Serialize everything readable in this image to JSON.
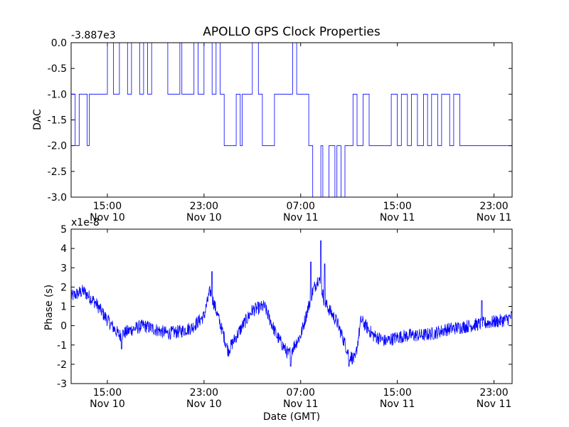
{
  "figure": {
    "title": "APOLLO GPS Clock Properties",
    "colors": {
      "line": "#0000ff",
      "axes": "#000000",
      "background": "#ffffff"
    }
  },
  "chart_data": [
    {
      "type": "line",
      "ylabel": "DAC",
      "xlabel": "",
      "offset_label": "-3.887e3",
      "ylim": [
        -3.0,
        0.0
      ],
      "yticks": [
        0.0,
        -0.5,
        -1.0,
        -1.5,
        -2.0,
        -2.5,
        -3.0
      ],
      "ytick_labels": [
        "0.0",
        "-0.5",
        "-1.0",
        "-1.5",
        "-2.0",
        "-2.5",
        "-3.0"
      ],
      "xlim": [
        "2012-11-10 12:00",
        "2012-11-12 00:30"
      ],
      "xtick_labels": [
        {
          "time": "15:00",
          "date": "Nov 10"
        },
        {
          "time": "23:00",
          "date": "Nov 10"
        },
        {
          "time": "07:00",
          "date": "Nov 11"
        },
        {
          "time": "15:00",
          "date": "Nov 11"
        },
        {
          "time": "23:00",
          "date": "Nov 11"
        }
      ],
      "xticks": [
        "2012-11-10 15:00",
        "2012-11-10 23:00",
        "2012-11-11 07:00",
        "2012-11-11 15:00",
        "2012-11-11 23:00"
      ],
      "series": [
        {
          "color": "#0000ff",
          "segments": [
            {
              "start": "2012-11-10 12:00",
              "end": "2012-11-10 12:20",
              "value": -1
            },
            {
              "start": "2012-11-10 12:20",
              "end": "2012-11-10 12:40",
              "value": -2
            },
            {
              "start": "2012-11-10 12:40",
              "end": "2012-11-10 13:20",
              "value": -1
            },
            {
              "start": "2012-11-10 13:20",
              "end": "2012-11-10 13:30",
              "value": -2
            },
            {
              "start": "2012-11-10 13:30",
              "end": "2012-11-10 15:00",
              "value": -1
            },
            {
              "start": "2012-11-10 15:00",
              "end": "2012-11-10 15:30",
              "value": 0
            },
            {
              "start": "2012-11-10 15:30",
              "end": "2012-11-10 16:00",
              "value": -1
            },
            {
              "start": "2012-11-10 16:00",
              "end": "2012-11-10 16:40",
              "value": 0
            },
            {
              "start": "2012-11-10 16:40",
              "end": "2012-11-10 17:00",
              "value": -1
            },
            {
              "start": "2012-11-10 17:00",
              "end": "2012-11-10 17:40",
              "value": 0
            },
            {
              "start": "2012-11-10 17:40",
              "end": "2012-11-10 18:00",
              "value": -1
            },
            {
              "start": "2012-11-10 18:00",
              "end": "2012-11-10 18:20",
              "value": 0
            },
            {
              "start": "2012-11-10 18:20",
              "end": "2012-11-10 18:40",
              "value": -1
            },
            {
              "start": "2012-11-10 18:40",
              "end": "2012-11-10 20:00",
              "value": 0
            },
            {
              "start": "2012-11-10 20:00",
              "end": "2012-11-10 21:00",
              "value": -1
            },
            {
              "start": "2012-11-10 21:00",
              "end": "2012-11-10 21:10",
              "value": 0
            },
            {
              "start": "2012-11-10 21:10",
              "end": "2012-11-10 22:10",
              "value": -1
            },
            {
              "start": "2012-11-10 22:10",
              "end": "2012-11-10 22:30",
              "value": 0
            },
            {
              "start": "2012-11-10 22:30",
              "end": "2012-11-10 23:00",
              "value": -1
            },
            {
              "start": "2012-11-10 23:00",
              "end": "2012-11-10 23:40",
              "value": 0
            },
            {
              "start": "2012-11-10 23:40",
              "end": "2012-11-11 00:00",
              "value": -1
            },
            {
              "start": "2012-11-11 00:00",
              "end": "2012-11-11 00:20",
              "value": 0
            },
            {
              "start": "2012-11-11 00:20",
              "end": "2012-11-11 00:40",
              "value": -1
            },
            {
              "start": "2012-11-11 00:40",
              "end": "2012-11-11 01:40",
              "value": -2
            },
            {
              "start": "2012-11-11 01:40",
              "end": "2012-11-11 02:00",
              "value": -1
            },
            {
              "start": "2012-11-11 02:00",
              "end": "2012-11-11 02:10",
              "value": -2
            },
            {
              "start": "2012-11-11 02:10",
              "end": "2012-11-11 03:00",
              "value": -1
            },
            {
              "start": "2012-11-11 03:00",
              "end": "2012-11-11 03:30",
              "value": 0
            },
            {
              "start": "2012-11-11 03:30",
              "end": "2012-11-11 03:50",
              "value": -1
            },
            {
              "start": "2012-11-11 03:50",
              "end": "2012-11-11 04:50",
              "value": -2
            },
            {
              "start": "2012-11-11 04:50",
              "end": "2012-11-11 06:20",
              "value": -1
            },
            {
              "start": "2012-11-11 06:20",
              "end": "2012-11-11 06:40",
              "value": 0
            },
            {
              "start": "2012-11-11 06:40",
              "end": "2012-11-11 07:40",
              "value": -1
            },
            {
              "start": "2012-11-11 07:40",
              "end": "2012-11-11 08:00",
              "value": -2
            },
            {
              "start": "2012-11-11 08:00",
              "end": "2012-11-11 08:40",
              "value": -3
            },
            {
              "start": "2012-11-11 08:40",
              "end": "2012-11-11 08:50",
              "value": -2
            },
            {
              "start": "2012-11-11 08:50",
              "end": "2012-11-11 09:20",
              "value": -3
            },
            {
              "start": "2012-11-11 09:20",
              "end": "2012-11-11 09:50",
              "value": -2
            },
            {
              "start": "2012-11-11 09:50",
              "end": "2012-11-11 10:00",
              "value": -3
            },
            {
              "start": "2012-11-11 10:00",
              "end": "2012-11-11 10:20",
              "value": -2
            },
            {
              "start": "2012-11-11 10:20",
              "end": "2012-11-11 10:40",
              "value": -3
            },
            {
              "start": "2012-11-11 10:40",
              "end": "2012-11-11 11:20",
              "value": -2
            },
            {
              "start": "2012-11-11 11:20",
              "end": "2012-11-11 11:40",
              "value": -1
            },
            {
              "start": "2012-11-11 11:40",
              "end": "2012-11-11 12:10",
              "value": -2
            },
            {
              "start": "2012-11-11 12:10",
              "end": "2012-11-11 12:40",
              "value": -1
            },
            {
              "start": "2012-11-11 12:40",
              "end": "2012-11-11 14:30",
              "value": -2
            },
            {
              "start": "2012-11-11 14:30",
              "end": "2012-11-11 15:00",
              "value": -1
            },
            {
              "start": "2012-11-11 15:00",
              "end": "2012-11-11 15:20",
              "value": -2
            },
            {
              "start": "2012-11-11 15:20",
              "end": "2012-11-11 15:50",
              "value": -1
            },
            {
              "start": "2012-11-11 15:50",
              "end": "2012-11-11 16:10",
              "value": -2
            },
            {
              "start": "2012-11-11 16:10",
              "end": "2012-11-11 16:40",
              "value": -1
            },
            {
              "start": "2012-11-11 16:40",
              "end": "2012-11-11 17:10",
              "value": -2
            },
            {
              "start": "2012-11-11 17:10",
              "end": "2012-11-11 17:30",
              "value": -1
            },
            {
              "start": "2012-11-11 17:30",
              "end": "2012-11-11 17:50",
              "value": -2
            },
            {
              "start": "2012-11-11 17:50",
              "end": "2012-11-11 18:20",
              "value": -1
            },
            {
              "start": "2012-11-11 18:20",
              "end": "2012-11-11 18:40",
              "value": -2
            },
            {
              "start": "2012-11-11 18:40",
              "end": "2012-11-11 19:20",
              "value": -1
            },
            {
              "start": "2012-11-11 19:20",
              "end": "2012-11-11 19:40",
              "value": -2
            },
            {
              "start": "2012-11-11 19:40",
              "end": "2012-11-11 20:10",
              "value": -1
            },
            {
              "start": "2012-11-11 20:10",
              "end": "2012-11-12 00:30",
              "value": -2
            }
          ]
        }
      ]
    },
    {
      "type": "line",
      "ylabel": "Phase (s)",
      "xlabel": "Date (GMT)",
      "offset_label": "x1e-8",
      "ylim": [
        -3,
        5
      ],
      "yticks": [
        -3,
        -2,
        -1,
        0,
        1,
        2,
        3,
        4,
        5
      ],
      "ytick_labels": [
        "-3",
        "-2",
        "-1",
        "0",
        "1",
        "2",
        "3",
        "4",
        "5"
      ],
      "xlim": [
        "2012-11-10 12:00",
        "2012-11-12 00:30"
      ],
      "xtick_labels": [
        {
          "time": "15:00",
          "date": "Nov 10"
        },
        {
          "time": "23:00",
          "date": "Nov 10"
        },
        {
          "time": "07:00",
          "date": "Nov 11"
        },
        {
          "time": "15:00",
          "date": "Nov 11"
        },
        {
          "time": "23:00",
          "date": "Nov 11"
        }
      ],
      "xticks": [
        "2012-11-10 15:00",
        "2012-11-10 23:00",
        "2012-11-11 07:00",
        "2012-11-11 15:00",
        "2012-11-11 23:00"
      ],
      "series": [
        {
          "color": "#0000ff",
          "noise_amplitude": 0.35,
          "x": [
            "2012-11-10 12:00",
            "2012-11-10 13:00",
            "2012-11-10 14:00",
            "2012-11-10 15:00",
            "2012-11-10 16:00",
            "2012-11-10 17:00",
            "2012-11-10 18:00",
            "2012-11-10 19:00",
            "2012-11-10 20:00",
            "2012-11-10 21:00",
            "2012-11-10 22:00",
            "2012-11-10 23:00",
            "2012-11-10 23:30",
            "2012-11-11 00:00",
            "2012-11-11 01:00",
            "2012-11-11 02:00",
            "2012-11-11 03:00",
            "2012-11-11 04:00",
            "2012-11-11 05:00",
            "2012-11-11 06:00",
            "2012-11-11 07:00",
            "2012-11-11 08:00",
            "2012-11-11 08:30",
            "2012-11-11 09:00",
            "2012-11-11 10:00",
            "2012-11-11 11:00",
            "2012-11-11 11:30",
            "2012-11-11 12:00",
            "2012-11-11 13:00",
            "2012-11-11 14:00",
            "2012-11-11 15:00",
            "2012-11-11 16:00",
            "2012-11-11 17:00",
            "2012-11-11 18:00",
            "2012-11-11 19:00",
            "2012-11-11 20:00",
            "2012-11-11 21:00",
            "2012-11-11 22:00",
            "2012-11-11 23:00",
            "2012-11-12 00:00",
            "2012-11-12 00:30"
          ],
          "values": [
            1.5,
            1.8,
            1.2,
            0.3,
            -0.5,
            -0.2,
            0.0,
            -0.2,
            -0.4,
            -0.3,
            -0.1,
            0.5,
            1.8,
            0.8,
            -1.3,
            -0.2,
            0.8,
            1.0,
            -0.5,
            -1.5,
            -0.5,
            1.8,
            2.5,
            1.2,
            0.2,
            -1.5,
            -1.8,
            0.3,
            -0.5,
            -0.8,
            -0.6,
            -0.5,
            -0.5,
            -0.4,
            -0.2,
            -0.1,
            0.0,
            0.1,
            0.2,
            0.3,
            0.5
          ],
          "spikes": [
            {
              "x": "2012-11-11 08:40",
              "value": 4.4
            },
            {
              "x": "2012-11-10 23:40",
              "value": 2.8
            },
            {
              "x": "2012-11-11 07:50",
              "value": 3.3
            },
            {
              "x": "2012-11-11 09:00",
              "value": 3.2
            },
            {
              "x": "2012-11-11 11:00",
              "value": -2.1
            },
            {
              "x": "2012-11-11 06:10",
              "value": -2.1
            },
            {
              "x": "2012-11-10 16:10",
              "value": -1.2
            },
            {
              "x": "2012-11-11 22:00",
              "value": 1.3
            }
          ]
        }
      ]
    }
  ]
}
